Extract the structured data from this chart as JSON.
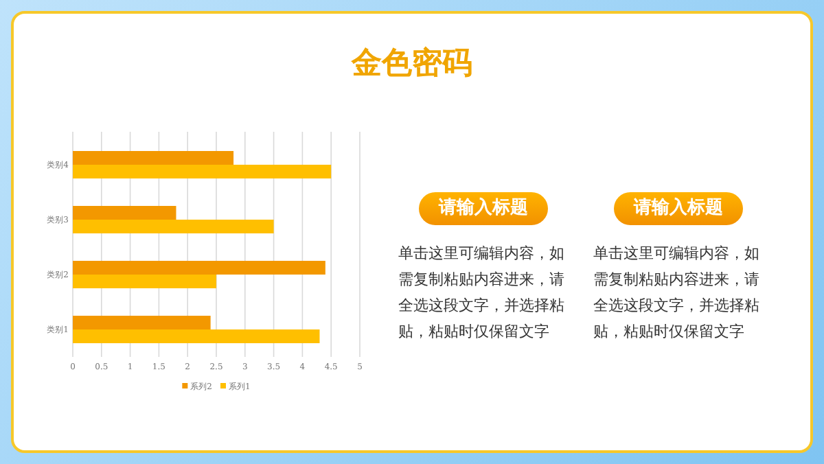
{
  "chart_data": {
    "type": "bar",
    "orientation": "horizontal",
    "title": "金色密码",
    "categories": [
      "类别4",
      "类别3",
      "类别2",
      "类别1"
    ],
    "series": [
      {
        "name": "系列2",
        "color": "#f39800",
        "values": [
          2.8,
          1.8,
          4.4,
          2.4
        ]
      },
      {
        "name": "系列1",
        "color": "#ffbf00",
        "values": [
          4.5,
          3.5,
          2.5,
          4.3
        ]
      }
    ],
    "xlim": [
      0,
      5
    ],
    "xticks": [
      0,
      0.5,
      1,
      1.5,
      2,
      2.5,
      3,
      3.5,
      4,
      4.5,
      5
    ],
    "grid": "x",
    "legend": "bottom",
    "annotations": [
      "请输入标题",
      "单击这里可编辑内容，如需复制粘贴内容进来，请全选这段文字，并选择粘贴，粘贴时仅保留文字",
      "请输入标题",
      "单击这里可编辑内容，如需复制粘贴内容进来，请全选这段文字，并选择粘贴，粘贴时仅保留文字"
    ]
  }
}
